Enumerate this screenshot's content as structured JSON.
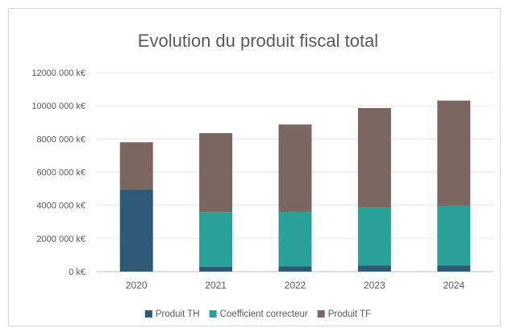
{
  "chart_data": {
    "type": "bar",
    "stacked": true,
    "title": "Evolution du produit fiscal total",
    "categories": [
      "2020",
      "2021",
      "2022",
      "2023",
      "2024"
    ],
    "series": [
      {
        "name": "Produit TH",
        "color": "#2e5a78",
        "values": [
          4950000,
          300000,
          320000,
          380000,
          380000
        ]
      },
      {
        "name": "Coefficient correcteur",
        "color": "#2aa198",
        "values": [
          0,
          3290000,
          3300000,
          3470000,
          3570000
        ]
      },
      {
        "name": "Produit TF",
        "color": "#7b6660",
        "values": [
          2850000,
          4760000,
          5250000,
          6010000,
          6360000
        ]
      }
    ],
    "ylim": [
      0,
      12000000
    ],
    "yticks": [
      0,
      2000000,
      4000000,
      6000000,
      8000000,
      10000000,
      12000000
    ],
    "ytick_labels": [
      "0 k€",
      "2000 000 k€",
      "4000 000 k€",
      "6000 000 k€",
      "8000 000 k€",
      "10000 000 k€",
      "12000 000 k€"
    ],
    "grid": true,
    "legend_position": "bottom"
  }
}
